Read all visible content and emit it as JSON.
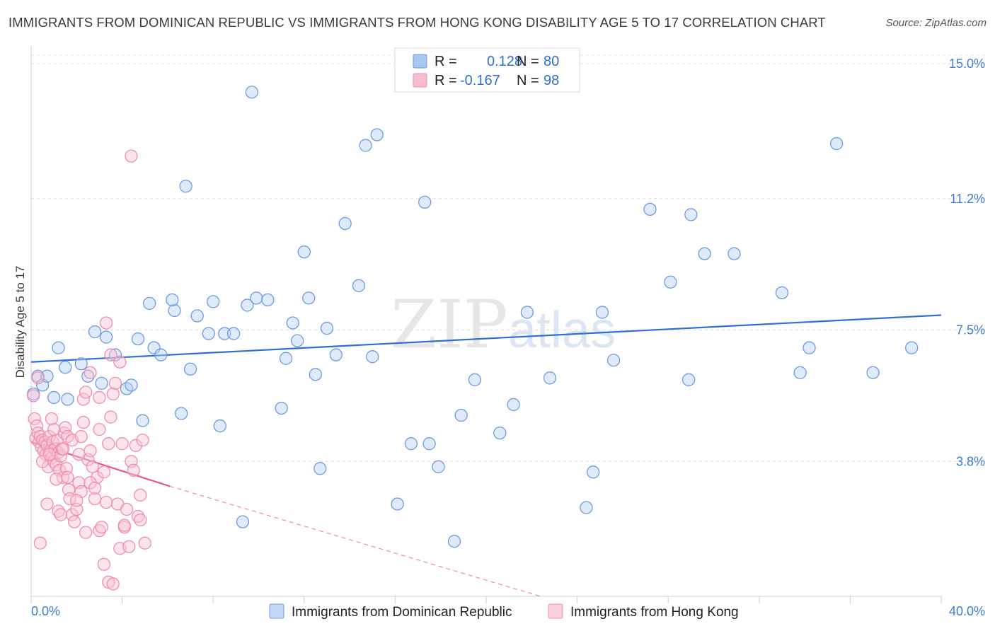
{
  "title": "IMMIGRANTS FROM DOMINICAN REPUBLIC VS IMMIGRANTS FROM HONG KONG DISABILITY AGE 5 TO 17 CORRELATION CHART",
  "source": "Source: ZipAtlas.com",
  "watermark": {
    "zip": "ZIP",
    "atlas": "atlas"
  },
  "legend": {
    "r_label": "R =",
    "n_label": "N =",
    "rows": [
      {
        "r": "0.128",
        "n": "80",
        "color": "#a9c7f0",
        "border": "#6d9be0"
      },
      {
        "r": "-0.167",
        "n": "98",
        "color": "#f8bcd0",
        "border": "#ee8fae"
      }
    ]
  },
  "bottom_legend": [
    {
      "label": "Immigrants from Dominican Republic",
      "color": "#c4d9f6",
      "border": "#6d9be0"
    },
    {
      "label": "Immigrants from Hong Kong",
      "color": "#fbd0de",
      "border": "#ee8fae"
    }
  ],
  "chart_data": {
    "type": "scatter",
    "title": "IMMIGRANTS FROM DOMINICAN REPUBLIC VS IMMIGRANTS FROM HONG KONG DISABILITY AGE 5 TO 17 CORRELATION CHART",
    "xlabel": "",
    "ylabel": "Disability Age 5 to 17",
    "xlim": [
      0,
      40
    ],
    "ylim": [
      0,
      15.5
    ],
    "x_tick_labels": [
      "0.0%",
      "40.0%"
    ],
    "y_ticks": [
      3.8,
      7.5,
      11.2,
      15.0
    ],
    "y_tick_labels": [
      "3.8%",
      "7.5%",
      "11.2%",
      "15.0%"
    ],
    "grid": "horizontal dashed",
    "series": [
      {
        "name": "Immigrants from Dominican Republic",
        "color": "#6d9be0",
        "fill": "#b9d2f3",
        "trend": {
          "x": [
            0,
            40
          ],
          "y": [
            6.6,
            7.92
          ],
          "color": "#2f6fd0"
        },
        "points": [
          [
            0.1,
            5.7
          ],
          [
            0.3,
            6.2
          ],
          [
            0.5,
            5.95
          ],
          [
            0.7,
            6.2
          ],
          [
            1.0,
            5.6
          ],
          [
            1.2,
            7.0
          ],
          [
            1.5,
            6.45
          ],
          [
            1.6,
            5.55
          ],
          [
            2.2,
            6.55
          ],
          [
            2.5,
            6.2
          ],
          [
            2.8,
            7.45
          ],
          [
            3.1,
            6.0
          ],
          [
            3.3,
            7.3
          ],
          [
            3.7,
            6.8
          ],
          [
            4.2,
            5.85
          ],
          [
            4.4,
            5.95
          ],
          [
            4.7,
            7.25
          ],
          [
            4.9,
            4.95
          ],
          [
            5.2,
            8.25
          ],
          [
            5.4,
            7.0
          ],
          [
            5.7,
            6.8
          ],
          [
            6.3,
            8.05
          ],
          [
            6.2,
            8.35
          ],
          [
            6.6,
            5.15
          ],
          [
            6.8,
            11.55
          ],
          [
            7.0,
            6.4
          ],
          [
            7.3,
            7.9
          ],
          [
            7.8,
            7.4
          ],
          [
            8.0,
            8.3
          ],
          [
            8.3,
            4.8
          ],
          [
            8.5,
            7.4
          ],
          [
            8.9,
            7.4
          ],
          [
            9.3,
            2.1
          ],
          [
            9.5,
            8.2
          ],
          [
            9.7,
            14.2
          ],
          [
            9.9,
            8.4
          ],
          [
            10.4,
            8.35
          ],
          [
            11.0,
            5.3
          ],
          [
            11.2,
            6.7
          ],
          [
            11.5,
            7.7
          ],
          [
            11.7,
            7.2
          ],
          [
            12.0,
            9.7
          ],
          [
            12.2,
            8.4
          ],
          [
            12.5,
            6.25
          ],
          [
            12.7,
            3.6
          ],
          [
            13.0,
            7.55
          ],
          [
            13.4,
            6.8
          ],
          [
            13.8,
            10.5
          ],
          [
            14.4,
            8.75
          ],
          [
            14.7,
            12.7
          ],
          [
            15.0,
            6.75
          ],
          [
            15.2,
            13.0
          ],
          [
            16.1,
            2.6
          ],
          [
            16.7,
            4.3
          ],
          [
            17.3,
            11.1
          ],
          [
            17.5,
            4.3
          ],
          [
            17.9,
            3.65
          ],
          [
            18.6,
            1.55
          ],
          [
            18.9,
            5.1
          ],
          [
            19.5,
            6.1
          ],
          [
            20.6,
            4.6
          ],
          [
            21.2,
            5.4
          ],
          [
            21.8,
            8.0
          ],
          [
            22.8,
            6.15
          ],
          [
            24.4,
            2.5
          ],
          [
            24.7,
            3.5
          ],
          [
            25.1,
            8.0
          ],
          [
            25.6,
            6.65
          ],
          [
            27.2,
            10.9
          ],
          [
            28.1,
            8.85
          ],
          [
            28.9,
            6.1
          ],
          [
            29.0,
            10.75
          ],
          [
            29.6,
            9.65
          ],
          [
            30.9,
            9.65
          ],
          [
            33.0,
            8.55
          ],
          [
            33.8,
            6.3
          ],
          [
            34.2,
            7.0
          ],
          [
            35.4,
            12.75
          ],
          [
            37.0,
            6.3
          ],
          [
            38.7,
            7.0
          ]
        ]
      },
      {
        "name": "Immigrants from Hong Kong",
        "color": "#ee8fae",
        "fill": "#f9c3d5",
        "trend": {
          "solid": {
            "x": [
              0,
              6.1
            ],
            "y": [
              4.35,
              3.1
            ]
          },
          "dashed": {
            "x": [
              6.1,
              22.5
            ],
            "y": [
              3.1,
              -0.02
            ]
          },
          "color": "#e8588a"
        },
        "points": [
          [
            0.1,
            5.65
          ],
          [
            0.15,
            5.0
          ],
          [
            0.2,
            4.45
          ],
          [
            0.25,
            4.8
          ],
          [
            0.3,
            4.6
          ],
          [
            0.35,
            4.35
          ],
          [
            0.4,
            4.5
          ],
          [
            0.45,
            4.2
          ],
          [
            0.5,
            4.4
          ],
          [
            0.55,
            4.1
          ],
          [
            0.6,
            4.35
          ],
          [
            0.65,
            4.0
          ],
          [
            0.7,
            4.25
          ],
          [
            0.75,
            3.65
          ],
          [
            0.8,
            4.5
          ],
          [
            0.85,
            4.1
          ],
          [
            0.9,
            3.9
          ],
          [
            0.95,
            4.35
          ],
          [
            1.0,
            3.8
          ],
          [
            1.05,
            4.15
          ],
          [
            1.1,
            3.7
          ],
          [
            1.15,
            4.4
          ],
          [
            1.2,
            4.05
          ],
          [
            1.25,
            3.55
          ],
          [
            1.3,
            3.95
          ],
          [
            1.35,
            4.15
          ],
          [
            1.4,
            3.35
          ],
          [
            1.45,
            4.6
          ],
          [
            1.5,
            4.75
          ],
          [
            1.55,
            3.6
          ],
          [
            1.6,
            4.5
          ],
          [
            1.65,
            3.0
          ],
          [
            1.7,
            2.75
          ],
          [
            1.8,
            2.3
          ],
          [
            1.9,
            2.1
          ],
          [
            2.0,
            2.45
          ],
          [
            2.1,
            3.2
          ],
          [
            2.2,
            2.95
          ],
          [
            2.3,
            5.55
          ],
          [
            2.4,
            5.75
          ],
          [
            2.5,
            3.85
          ],
          [
            2.6,
            6.3
          ],
          [
            2.7,
            3.65
          ],
          [
            2.8,
            2.75
          ],
          [
            2.9,
            3.35
          ],
          [
            3.0,
            1.85
          ],
          [
            3.1,
            1.95
          ],
          [
            3.2,
            3.5
          ],
          [
            3.3,
            2.65
          ],
          [
            3.4,
            4.3
          ],
          [
            3.5,
            5.05
          ],
          [
            3.6,
            5.7
          ],
          [
            3.7,
            6.0
          ],
          [
            3.8,
            2.6
          ],
          [
            3.9,
            1.35
          ],
          [
            4.0,
            4.3
          ],
          [
            4.1,
            1.95
          ],
          [
            4.2,
            2.45
          ],
          [
            4.3,
            1.4
          ],
          [
            4.4,
            3.8
          ],
          [
            4.5,
            3.55
          ],
          [
            4.6,
            4.25
          ],
          [
            4.7,
            2.25
          ],
          [
            4.8,
            2.85
          ],
          [
            4.9,
            4.4
          ],
          [
            5.0,
            1.5
          ],
          [
            0.4,
            1.5
          ],
          [
            1.1,
            3.3
          ],
          [
            2.0,
            2.7
          ],
          [
            2.6,
            4.1
          ],
          [
            3.3,
            7.7
          ],
          [
            3.5,
            6.8
          ],
          [
            4.4,
            12.4
          ],
          [
            0.3,
            6.15
          ],
          [
            0.9,
            5.0
          ],
          [
            1.4,
            4.15
          ],
          [
            1.8,
            4.4
          ],
          [
            2.3,
            4.9
          ],
          [
            2.6,
            3.2
          ],
          [
            3.0,
            4.7
          ],
          [
            0.7,
            2.6
          ],
          [
            1.2,
            2.4
          ],
          [
            1.6,
            3.35
          ],
          [
            2.2,
            4.5
          ],
          [
            2.4,
            1.8
          ],
          [
            2.8,
            3.05
          ],
          [
            3.0,
            5.6
          ],
          [
            3.2,
            0.9
          ],
          [
            3.4,
            0.4
          ],
          [
            3.6,
            0.35
          ],
          [
            3.9,
            6.6
          ],
          [
            4.1,
            2.0
          ],
          [
            4.8,
            2.15
          ],
          [
            1.0,
            4.7
          ],
          [
            0.5,
            3.8
          ],
          [
            2.1,
            4.0
          ],
          [
            1.3,
            2.3
          ],
          [
            0.8,
            4.0
          ]
        ]
      }
    ]
  }
}
